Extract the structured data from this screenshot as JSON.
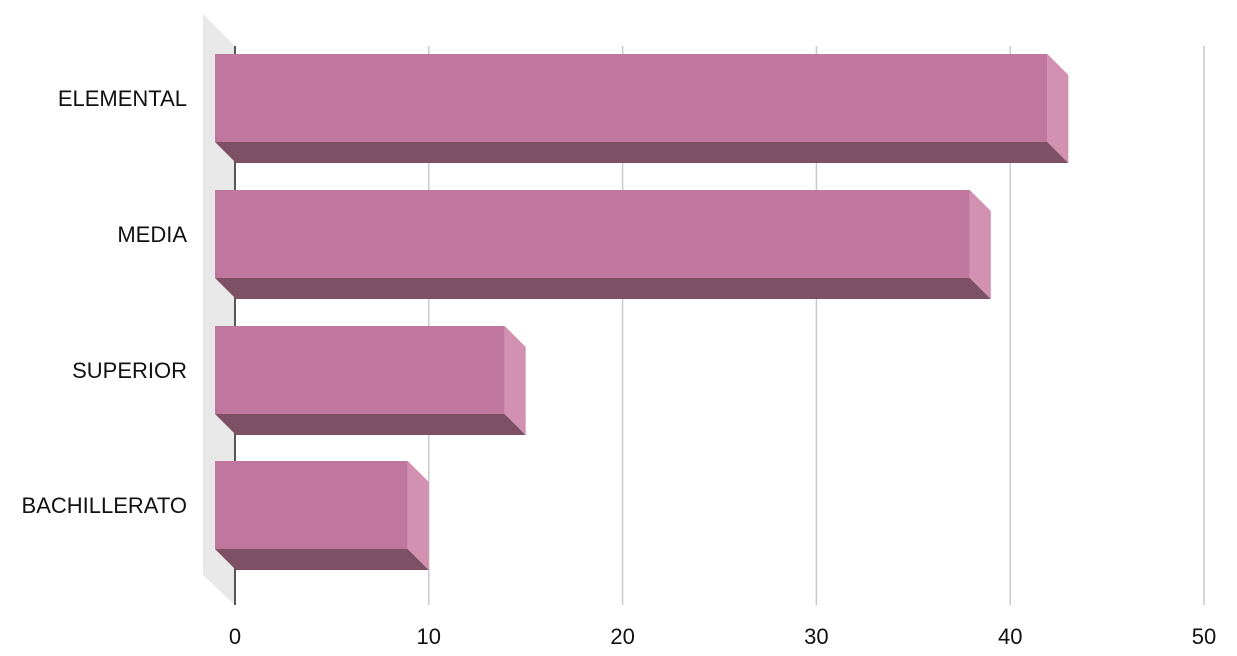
{
  "chart_data": {
    "type": "bar",
    "orientation": "horizontal",
    "style": "3d",
    "title": "",
    "xlabel": "",
    "ylabel": "",
    "categories": [
      "ELEMENTAL",
      "MEDIA",
      "SUPERIOR",
      "BACHILLERATO"
    ],
    "values": [
      43,
      39,
      15,
      10
    ],
    "xlim": [
      0,
      50
    ],
    "ticks": [
      "0",
      "10",
      "20",
      "30",
      "40",
      "50"
    ],
    "grid": true,
    "legend": "none"
  },
  "colors": {
    "bar_front": "#bf779d",
    "bar_bottom": "#7d5065",
    "bar_side": "#d291b1",
    "back_wall": "#e8e8e8",
    "gridline": "#c9c9c9",
    "axis": "#222222",
    "text": "#111111"
  }
}
